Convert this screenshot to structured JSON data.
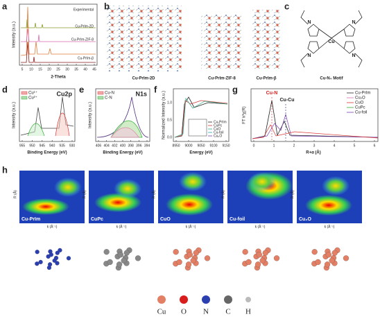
{
  "panel_labels": [
    "a",
    "b",
    "c",
    "d",
    "e",
    "f",
    "g",
    "h"
  ],
  "a": {
    "legend": [
      "Experimental",
      "Cu-PrIm-2D",
      "Cu-PrIm-ZIF-8",
      "Cu-PrIm-β"
    ],
    "x_label": "2-Theta",
    "y_label": "Intensity (a.u.)",
    "x_ticks": [
      "5",
      "10",
      "15",
      "20",
      "25",
      "30",
      "35",
      "40",
      "45"
    ]
  },
  "b": {
    "captions": [
      "Cu-PrIm-2D",
      "Cu-PrIm-ZIF-8",
      "Cu-PrIm-β"
    ]
  },
  "c": {
    "caption": "Cu-N₄ Motif",
    "atoms": [
      "N",
      "N",
      "Cu",
      "N",
      "N"
    ]
  },
  "d": {
    "title": "Cu2p",
    "legend": [
      "Cu¹⁺",
      "Cu²⁺"
    ],
    "x_label": "Binding Energy (eV)",
    "y_label": "Intensity (a.u.)",
    "x_ticks": [
      "955",
      "950",
      "945",
      "940",
      "935",
      "930"
    ]
  },
  "e": {
    "title": "N1s",
    "legend": [
      "Cu-N",
      "C-N"
    ],
    "x_label": "Binding Energy (eV)",
    "y_label": "Intensity (a.u.)",
    "x_ticks": [
      "406",
      "404",
      "402",
      "400",
      "398",
      "396",
      "394"
    ]
  },
  "f": {
    "legend": [
      "Cu-PrIm",
      "CuPc",
      "CuO",
      "Cu-foil",
      "Cu₂O"
    ],
    "x_label": "Energy (eV)",
    "y_label": "Normalized Intensity (a.u.)",
    "x_ticks": [
      "8950",
      "9000",
      "9050",
      "9100",
      "9150"
    ],
    "y_ticks": [
      "0.0",
      "0.5",
      "1.0"
    ]
  },
  "g": {
    "legend": [
      "Cu-PrIm",
      "Cu₂O",
      "CuO",
      "CuPc",
      "Cu-foil"
    ],
    "annotations": [
      "Cu-N",
      "Cu-Cu"
    ],
    "x_label": "R+α (Å)",
    "y_label": "FT k³χ(R)",
    "x_ticks": [
      "0",
      "1",
      "2",
      "3",
      "4",
      "5",
      "6"
    ]
  },
  "h": {
    "maps": [
      "Cu-PrIm",
      "CuPc",
      "CuO",
      "Cu-foil",
      "Cu₂O"
    ],
    "y_label": "R (Å)",
    "x_label": "k (Å⁻¹)"
  },
  "atom_legend": [
    "Cu",
    "O",
    "N",
    "C",
    "H"
  ]
}
